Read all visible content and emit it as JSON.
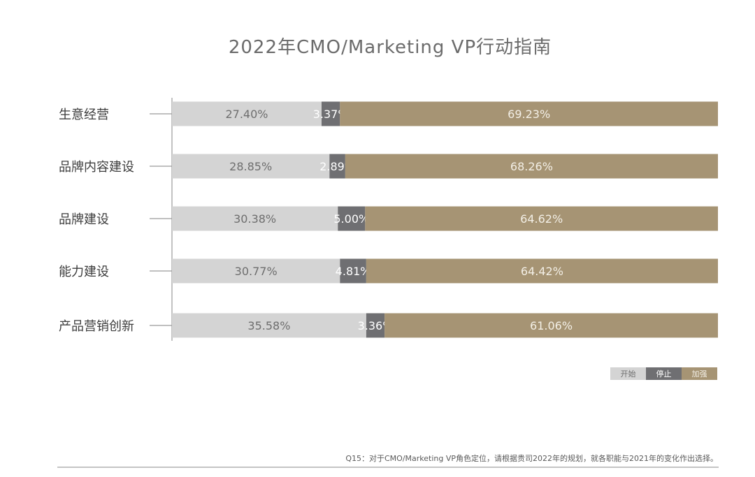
{
  "chart_data": {
    "type": "bar",
    "orientation": "horizontal",
    "stacked": true,
    "title": "2022年CMO/Marketing VP行动指南",
    "categories": [
      "生意经营",
      "品牌内容建设",
      "品牌建设",
      "能力建设",
      "产品营销创新"
    ],
    "series": [
      {
        "name": "开始",
        "values": [
          27.4,
          28.85,
          30.38,
          30.77,
          35.58
        ],
        "labels": [
          "27.40%",
          "28.85%",
          "30.38%",
          "30.77%",
          "35.58%"
        ],
        "color": "#d4d4d4",
        "label_color": "#6e6e6e"
      },
      {
        "name": "停止",
        "values": [
          3.37,
          2.89,
          5.0,
          4.81,
          3.36
        ],
        "labels": [
          "3.37%",
          "2.89%",
          "5.00%",
          "4.81%",
          "3.36%"
        ],
        "color": "#6f6f72",
        "label_color": "#ffffff"
      },
      {
        "name": "加强",
        "values": [
          69.23,
          68.26,
          64.62,
          64.42,
          61.06
        ],
        "labels": [
          "69.23%",
          "68.26%",
          "64.62%",
          "64.42%",
          "61.06%"
        ],
        "color": "#a69474",
        "label_color": "#f3efe6"
      }
    ],
    "xlim": [
      0,
      100
    ],
    "grid": false,
    "legend": "bottom-right"
  },
  "footnote": "Q15：对于CMO/Marketing VP角色定位，请根据贵司2022年的规划，就各职能与2021年的变化作出选择。"
}
